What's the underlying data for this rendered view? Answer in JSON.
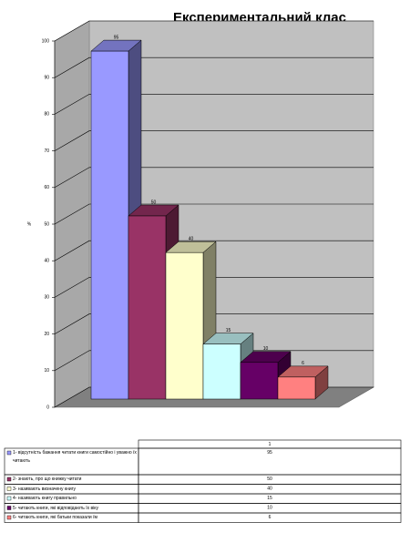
{
  "chart_data": {
    "type": "bar3d",
    "title": "Експериментальний клас",
    "y_label": "%",
    "categories": [
      "1- відсутність бажання читати книги самостійно і уважно їх читають",
      "2- знають, про що книжку читати",
      "3- називають визначену книгу",
      "4- називають книгу правильно",
      "5- читають книги, які відповідають їх віку",
      "6- читають книги, які батьки показали їм"
    ],
    "series": [
      {
        "name": "1",
        "colors": [
          "#9999ff",
          "#993366",
          "#ffffcc",
          "#ccffff",
          "#660066",
          "#ff8080"
        ],
        "values": [
          95,
          50,
          40,
          15,
          10,
          6
        ]
      }
    ],
    "ylim": [
      0,
      100
    ],
    "yticks": [
      0,
      10,
      20,
      30,
      40,
      50,
      60,
      70,
      80,
      90,
      100
    ],
    "grid": true
  }
}
